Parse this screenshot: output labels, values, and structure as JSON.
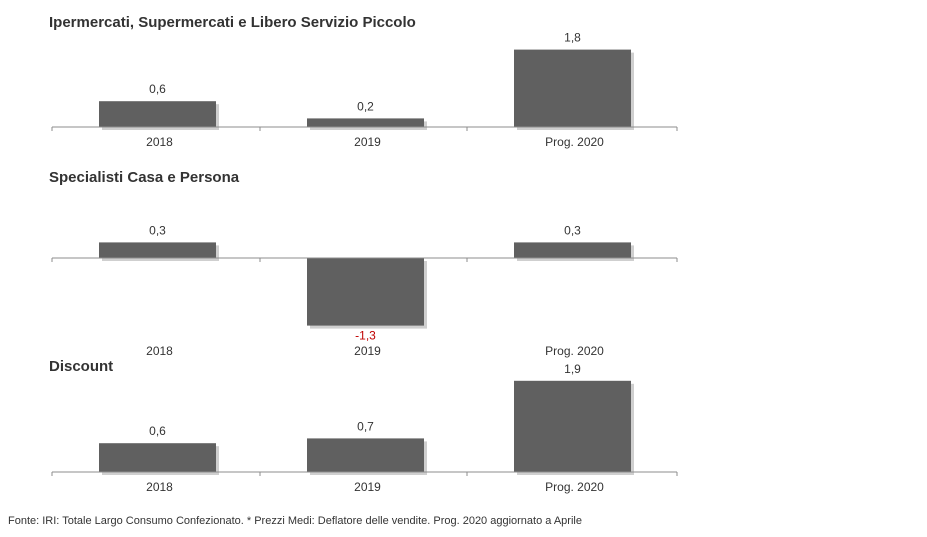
{
  "chart_data": [
    {
      "type": "bar",
      "title": "Ipermercati,  Supermercati e Libero Servizio Piccolo",
      "categories": [
        "2018",
        "2019",
        "Prog. 2020"
      ],
      "values": [
        0.6,
        0.2,
        1.8
      ],
      "value_labels": [
        "0,6",
        "0,2",
        "1,8"
      ],
      "xlabel": "",
      "ylabel": "",
      "ylim": [
        0,
        1.8
      ],
      "bar_color": "#606060",
      "grid": false
    },
    {
      "type": "bar",
      "title": "Specialisti  Casa e Persona",
      "categories": [
        "2018",
        "2019",
        "Prog. 2020"
      ],
      "values": [
        0.3,
        -1.3,
        0.3
      ],
      "value_labels": [
        "0,3",
        "-1,3",
        "0,3"
      ],
      "xlabel": "",
      "ylabel": "",
      "ylim": [
        -1.3,
        0.3
      ],
      "bar_color": "#606060",
      "negative_label_color": "#c00000",
      "grid": false
    },
    {
      "type": "bar",
      "title": "Discount",
      "categories": [
        "2018",
        "2019",
        "Prog. 2020"
      ],
      "values": [
        0.6,
        0.7,
        1.9
      ],
      "value_labels": [
        "0,6",
        "0,7",
        "1,9"
      ],
      "xlabel": "",
      "ylabel": "",
      "ylim": [
        0,
        1.9
      ],
      "bar_color": "#606060",
      "grid": false
    }
  ],
  "footnote": "Fonte: IRI: Totale Largo Consumo Confezionato.  * Prezzi  Medi:  Deflatore delle vendite.   Prog. 2020 aggiornato a Aprile"
}
